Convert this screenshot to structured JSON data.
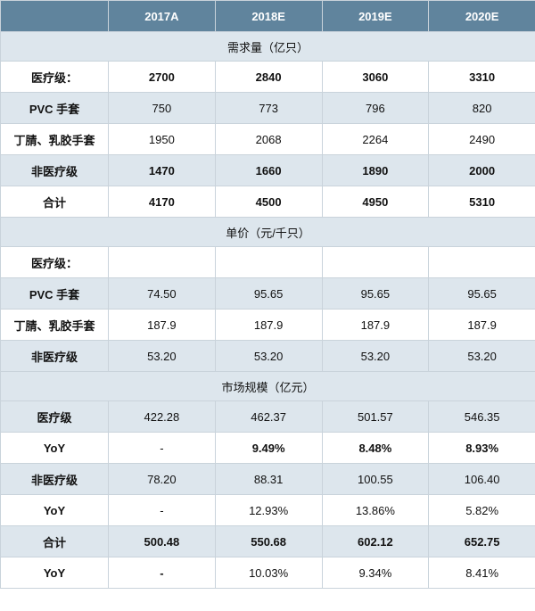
{
  "header": [
    "",
    "2017A",
    "2018E",
    "2019E",
    "2020E"
  ],
  "sections": [
    {
      "title": "需求量（亿只）",
      "rows": [
        {
          "label": "医疗级：",
          "values": [
            "2700",
            "2840",
            "3060",
            "3310"
          ],
          "bold": [
            true,
            true,
            true,
            true
          ],
          "label_bold": true,
          "shade": false
        },
        {
          "label": "PVC 手套",
          "values": [
            "750",
            "773",
            "796",
            "820"
          ],
          "bold": [
            false,
            false,
            false,
            false
          ],
          "label_bold": true,
          "shade": true
        },
        {
          "label": "丁腈、乳胶手套",
          "values": [
            "1950",
            "2068",
            "2264",
            "2490"
          ],
          "bold": [
            false,
            false,
            false,
            false
          ],
          "label_bold": true,
          "shade": false
        },
        {
          "label": "非医疗级",
          "values": [
            "1470",
            "1660",
            "1890",
            "2000"
          ],
          "bold": [
            true,
            true,
            true,
            true
          ],
          "label_bold": true,
          "shade": true
        },
        {
          "label": "合计",
          "values": [
            "4170",
            "4500",
            "4950",
            "5310"
          ],
          "bold": [
            true,
            true,
            true,
            true
          ],
          "label_bold": true,
          "shade": false
        }
      ]
    },
    {
      "title": "单价（元/千只）",
      "rows": [
        {
          "label": "医疗级：",
          "values": [
            "",
            "",
            "",
            ""
          ],
          "bold": [
            false,
            false,
            false,
            false
          ],
          "label_bold": true,
          "shade": false
        },
        {
          "label": "PVC 手套",
          "values": [
            "74.50",
            "95.65",
            "95.65",
            "95.65"
          ],
          "bold": [
            false,
            false,
            false,
            false
          ],
          "label_bold": true,
          "shade": true
        },
        {
          "label": "丁腈、乳胶手套",
          "values": [
            "187.9",
            "187.9",
            "187.9",
            "187.9"
          ],
          "bold": [
            false,
            false,
            false,
            false
          ],
          "label_bold": true,
          "shade": false
        },
        {
          "label": "非医疗级",
          "values": [
            "53.20",
            "53.20",
            "53.20",
            "53.20"
          ],
          "bold": [
            false,
            false,
            false,
            false
          ],
          "label_bold": true,
          "shade": true
        }
      ]
    },
    {
      "title": "市场规模（亿元）",
      "rows": [
        {
          "label": "医疗级",
          "values": [
            "422.28",
            "462.37",
            "501.57",
            "546.35"
          ],
          "bold": [
            false,
            false,
            false,
            false
          ],
          "label_bold": true,
          "shade": true
        },
        {
          "label": "YoY",
          "values": [
            "-",
            "9.49%",
            "8.48%",
            "8.93%"
          ],
          "bold": [
            false,
            true,
            true,
            true
          ],
          "label_bold": true,
          "shade": false
        },
        {
          "label": "非医疗级",
          "values": [
            "78.20",
            "88.31",
            "100.55",
            "106.40"
          ],
          "bold": [
            false,
            false,
            false,
            false
          ],
          "label_bold": true,
          "shade": true
        },
        {
          "label": "YoY",
          "values": [
            "-",
            "12.93%",
            "13.86%",
            "5.82%"
          ],
          "bold": [
            false,
            false,
            false,
            false
          ],
          "label_bold": true,
          "shade": false
        },
        {
          "label": "合计",
          "values": [
            "500.48",
            "550.68",
            "602.12",
            "652.75"
          ],
          "bold": [
            true,
            true,
            true,
            true
          ],
          "label_bold": true,
          "shade": true
        },
        {
          "label": "YoY",
          "values": [
            "-",
            "10.03%",
            "9.34%",
            "8.41%"
          ],
          "bold": [
            true,
            false,
            false,
            false
          ],
          "label_bold": true,
          "shade": false
        }
      ]
    }
  ]
}
